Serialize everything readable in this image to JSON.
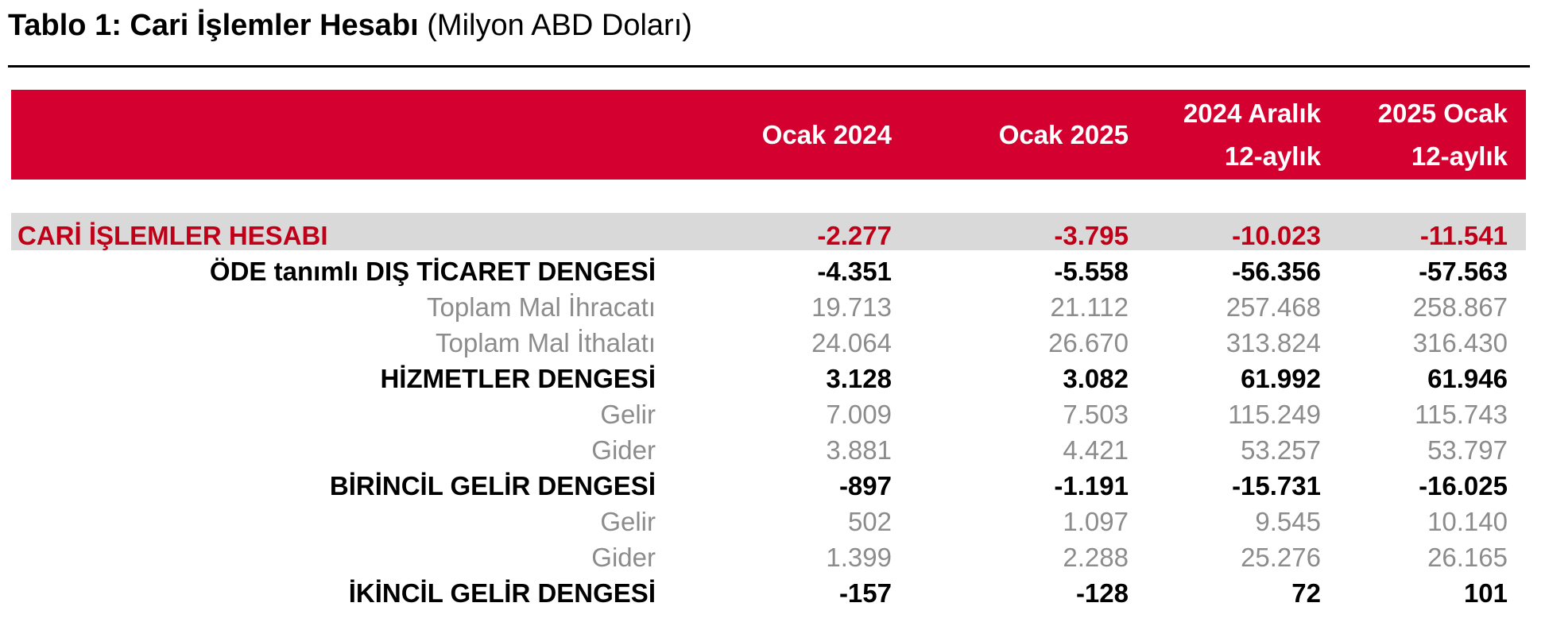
{
  "title": {
    "bold": "Tablo 1: Cari İşlemler Hesabı",
    "light": "(Milyon ABD Doları)"
  },
  "columns": [
    {
      "line1": "Ocak 2024",
      "line2": ""
    },
    {
      "line1": "Ocak 2025",
      "line2": ""
    },
    {
      "line1": "2024 Aralık",
      "line2": "12-aylık"
    },
    {
      "line1": "2025 Ocak",
      "line2": "12-aylık"
    }
  ],
  "colors": {
    "header_bg": "#d4002f",
    "total_text": "#c00018",
    "band_bg": "#d9d9d9",
    "minor_text": "#8c8c8c"
  },
  "rows": [
    {
      "label": "CARİ İŞLEMLER HESABI",
      "level": "total",
      "values": [
        "-2.277",
        "-3.795",
        "-10.023",
        "-11.541"
      ]
    },
    {
      "label": "ÖDE tanımlı DIŞ TİCARET DENGESİ",
      "level": "major",
      "values": [
        "-4.351",
        "-5.558",
        "-56.356",
        "-57.563"
      ]
    },
    {
      "label": "Toplam Mal İhracatı",
      "level": "minor",
      "values": [
        "19.713",
        "21.112",
        "257.468",
        "258.867"
      ]
    },
    {
      "label": "Toplam Mal İthalatı",
      "level": "minor",
      "values": [
        "24.064",
        "26.670",
        "313.824",
        "316.430"
      ]
    },
    {
      "label": "HİZMETLER DENGESİ",
      "level": "major",
      "values": [
        "3.128",
        "3.082",
        "61.992",
        "61.946"
      ]
    },
    {
      "label": "Gelir",
      "level": "minor",
      "values": [
        "7.009",
        "7.503",
        "115.249",
        "115.743"
      ]
    },
    {
      "label": "Gider",
      "level": "minor",
      "values": [
        "3.881",
        "4.421",
        "53.257",
        "53.797"
      ]
    },
    {
      "label": "BİRİNCİL GELİR DENGESİ",
      "level": "major",
      "values": [
        "-897",
        "-1.191",
        "-15.731",
        "-16.025"
      ]
    },
    {
      "label": "Gelir",
      "level": "minor",
      "values": [
        "502",
        "1.097",
        "9.545",
        "10.140"
      ]
    },
    {
      "label": "Gider",
      "level": "minor",
      "values": [
        "1.399",
        "2.288",
        "25.276",
        "26.165"
      ]
    },
    {
      "label": "İKİNCİL GELİR DENGESİ",
      "level": "major",
      "values": [
        "-157",
        "-128",
        "72",
        "101"
      ]
    }
  ]
}
